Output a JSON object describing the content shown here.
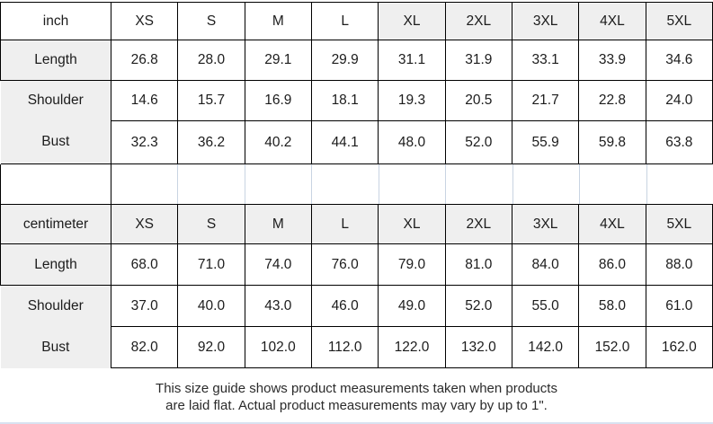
{
  "colors": {
    "border": "#000000",
    "label_bg": "#efefef",
    "gridline": "#c9d4e2",
    "bottom_rule": "#d9e2f0",
    "text": "#1c1c1c"
  },
  "inch_table": {
    "unit": "inch",
    "sizes": [
      "XS",
      "S",
      "M",
      "L",
      "XL",
      "2XL",
      "3XL",
      "4XL",
      "5XL"
    ],
    "length": {
      "label": "Length",
      "values": [
        "26.8",
        "28.0",
        "29.1",
        "29.9",
        "31.1",
        "31.9",
        "33.1",
        "33.9",
        "34.6"
      ]
    },
    "shoulder": {
      "label": "Shoulder",
      "values": [
        "14.6",
        "15.7",
        "16.9",
        "18.1",
        "19.3",
        "20.5",
        "21.7",
        "22.8",
        "24.0"
      ]
    },
    "bust": {
      "label": "Bust",
      "values": [
        "32.3",
        "36.2",
        "40.2",
        "44.1",
        "48.0",
        "52.0",
        "55.9",
        "59.8",
        "63.8"
      ]
    }
  },
  "cm_table": {
    "unit": "centimeter",
    "sizes": [
      "XS",
      "S",
      "M",
      "L",
      "XL",
      "2XL",
      "3XL",
      "4XL",
      "5XL"
    ],
    "length": {
      "label": "Length",
      "values": [
        "68.0",
        "71.0",
        "74.0",
        "76.0",
        "79.0",
        "81.0",
        "84.0",
        "86.0",
        "88.0"
      ]
    },
    "shoulder": {
      "label": "Shoulder",
      "values": [
        "37.0",
        "40.0",
        "43.0",
        "46.0",
        "49.0",
        "52.0",
        "55.0",
        "58.0",
        "61.0"
      ]
    },
    "bust": {
      "label": "Bust",
      "values": [
        "82.0",
        "92.0",
        "102.0",
        "112.0",
        "122.0",
        "132.0",
        "142.0",
        "152.0",
        "162.0"
      ]
    }
  },
  "footer": {
    "line1": "This size guide shows product measurements taken when products",
    "line2": "are laid flat. Actual product measurements may vary by up to 1\"."
  }
}
